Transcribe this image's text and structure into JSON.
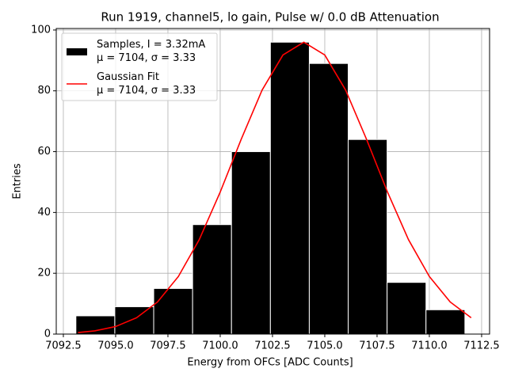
{
  "chart_data": {
    "type": "histogram",
    "title": "Run 1919, channel5, lo gain, Pulse w/ 0.0 dB Attenuation",
    "xlabel": "Energy from OFCs [ADC Counts]",
    "ylabel": "Entries",
    "xlim": [
      7092.16,
      7112.88
    ],
    "ylim": [
      0,
      100.5
    ],
    "xticks": [
      7092.5,
      {
        "value": 7095,
        "label": "7095.0"
      },
      7097.5,
      {
        "value": 7100,
        "label": "7100.0"
      },
      7102.5,
      {
        "value": 7105,
        "label": "7105.0"
      },
      7107.5,
      {
        "value": 7110,
        "label": "7110.0"
      },
      7112.5
    ],
    "yticks": [
      0,
      20,
      40,
      60,
      80,
      100
    ],
    "grid": true,
    "legend": "upper left",
    "series": [
      {
        "type": "histogram",
        "name": "Samples, I = 3.32mA\nμ = 7104, σ = 3.33",
        "color": "#000000",
        "bins": [
          7093.1,
          7094.96,
          7096.82,
          7098.68,
          7100.54,
          7102.4,
          7104.26,
          7106.12,
          7107.98,
          7109.84,
          7111.7
        ],
        "values": [
          6,
          9,
          15,
          36,
          60,
          96,
          89,
          64,
          17,
          8
        ]
      },
      {
        "type": "line",
        "name": "Gaussian Fit\nμ = 7104, σ = 3.33",
        "color": "#ff0000",
        "x": [
          7093.2,
          7094,
          7095,
          7096,
          7097,
          7098,
          7099,
          7100,
          7101,
          7102,
          7103,
          7104,
          7105,
          7106,
          7107,
          7108,
          7109,
          7110,
          7111,
          7112
        ],
        "values": [
          0.5,
          1.06,
          2.49,
          5.36,
          10.54,
          18.94,
          31.1,
          46.7,
          64.0,
          80.2,
          91.8,
          96,
          91.8,
          80.2,
          64.0,
          46.7,
          31.1,
          18.94,
          10.54,
          5.36
        ]
      }
    ]
  }
}
